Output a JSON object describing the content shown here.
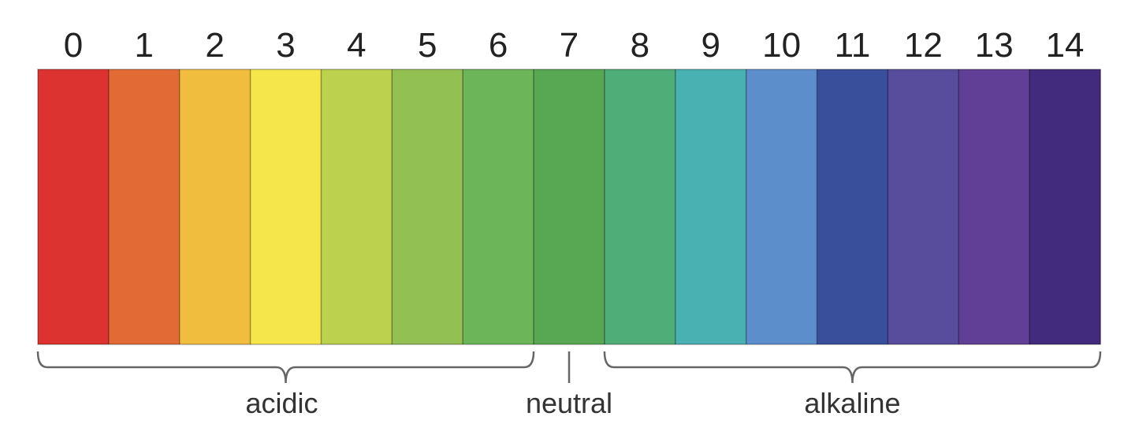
{
  "scale": {
    "values": [
      "0",
      "1",
      "2",
      "3",
      "4",
      "5",
      "6",
      "7",
      "8",
      "9",
      "10",
      "11",
      "12",
      "13",
      "14"
    ],
    "colors": [
      "#dc3330",
      "#e26b35",
      "#f0bd3f",
      "#f4e64b",
      "#bcd24e",
      "#93c052",
      "#6cb558",
      "#58a753",
      "#4fae77",
      "#4ab1b2",
      "#5c8ecc",
      "#3a4f9c",
      "#574d9c",
      "#623f96",
      "#422b7d"
    ]
  },
  "groups": {
    "acidic": {
      "label": "acidic",
      "from": 0,
      "to": 6
    },
    "neutral": {
      "label": "neutral",
      "at": 7
    },
    "alkaline": {
      "label": "alkaline",
      "from": 8,
      "to": 14
    }
  }
}
